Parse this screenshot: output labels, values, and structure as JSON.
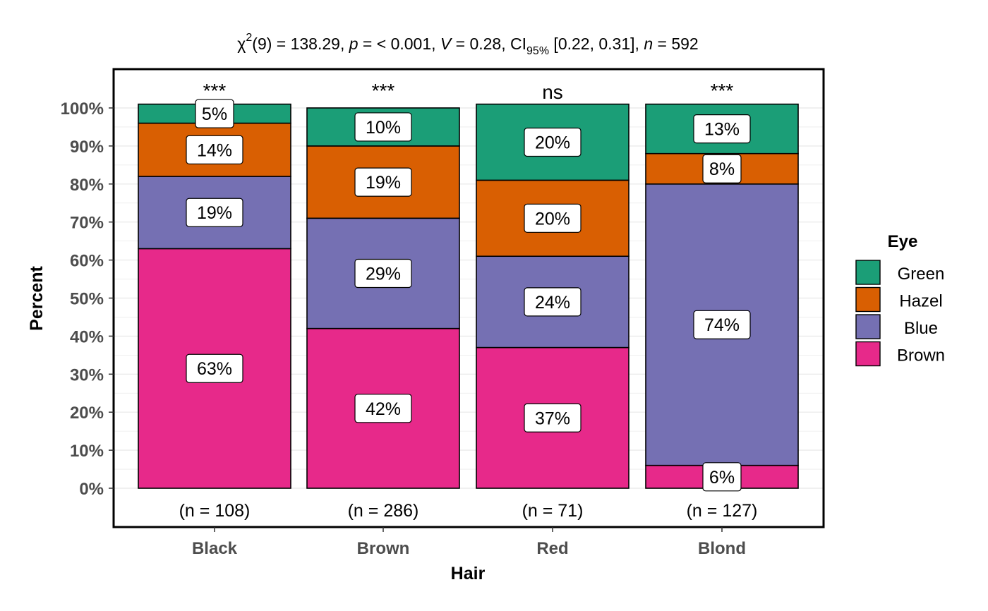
{
  "chart_data": {
    "type": "bar",
    "stacked": true,
    "percent": true,
    "subtitle": {
      "chi": "χ",
      "sup": "2",
      "df": "(9) = 138.29, ",
      "p_sym": "p",
      "p_val": " = < 0.001, ",
      "v_sym": "V",
      "v_val": " = 0.28, CI",
      "ci_sub": "95%",
      "ci_val": " [0.22, 0.31], ",
      "n_sym": "n",
      "n_val": " = 592"
    },
    "xlabel": "Hair",
    "ylabel": "Percent",
    "ylim": [
      0,
      100
    ],
    "yticks": [
      "0%",
      "10%",
      "20%",
      "30%",
      "40%",
      "50%",
      "60%",
      "70%",
      "80%",
      "90%",
      "100%"
    ],
    "categories": [
      "Black",
      "Brown",
      "Red",
      "Blond"
    ],
    "significance": [
      "***",
      "***",
      "ns",
      "***"
    ],
    "counts": [
      "(n = 108)",
      "(n = 286)",
      "(n = 71)",
      "(n = 127)"
    ],
    "grid": true,
    "legend": {
      "title": "Eye",
      "position": "right"
    },
    "series": [
      {
        "name": "Brown",
        "color": "#E7298A",
        "values": [
          63,
          42,
          37,
          6
        ],
        "labels": [
          "63%",
          "42%",
          "37%",
          "6%"
        ]
      },
      {
        "name": "Blue",
        "color": "#7570B3",
        "values": [
          19,
          29,
          24,
          74
        ],
        "labels": [
          "19%",
          "29%",
          "24%",
          "74%"
        ]
      },
      {
        "name": "Hazel",
        "color": "#D95F02",
        "values": [
          14,
          19,
          20,
          8
        ],
        "labels": [
          "14%",
          "19%",
          "20%",
          "8%"
        ]
      },
      {
        "name": "Green",
        "color": "#1B9E77",
        "values": [
          5,
          10,
          20,
          13
        ],
        "labels": [
          "5%",
          "10%",
          "20%",
          "13%"
        ]
      }
    ]
  }
}
